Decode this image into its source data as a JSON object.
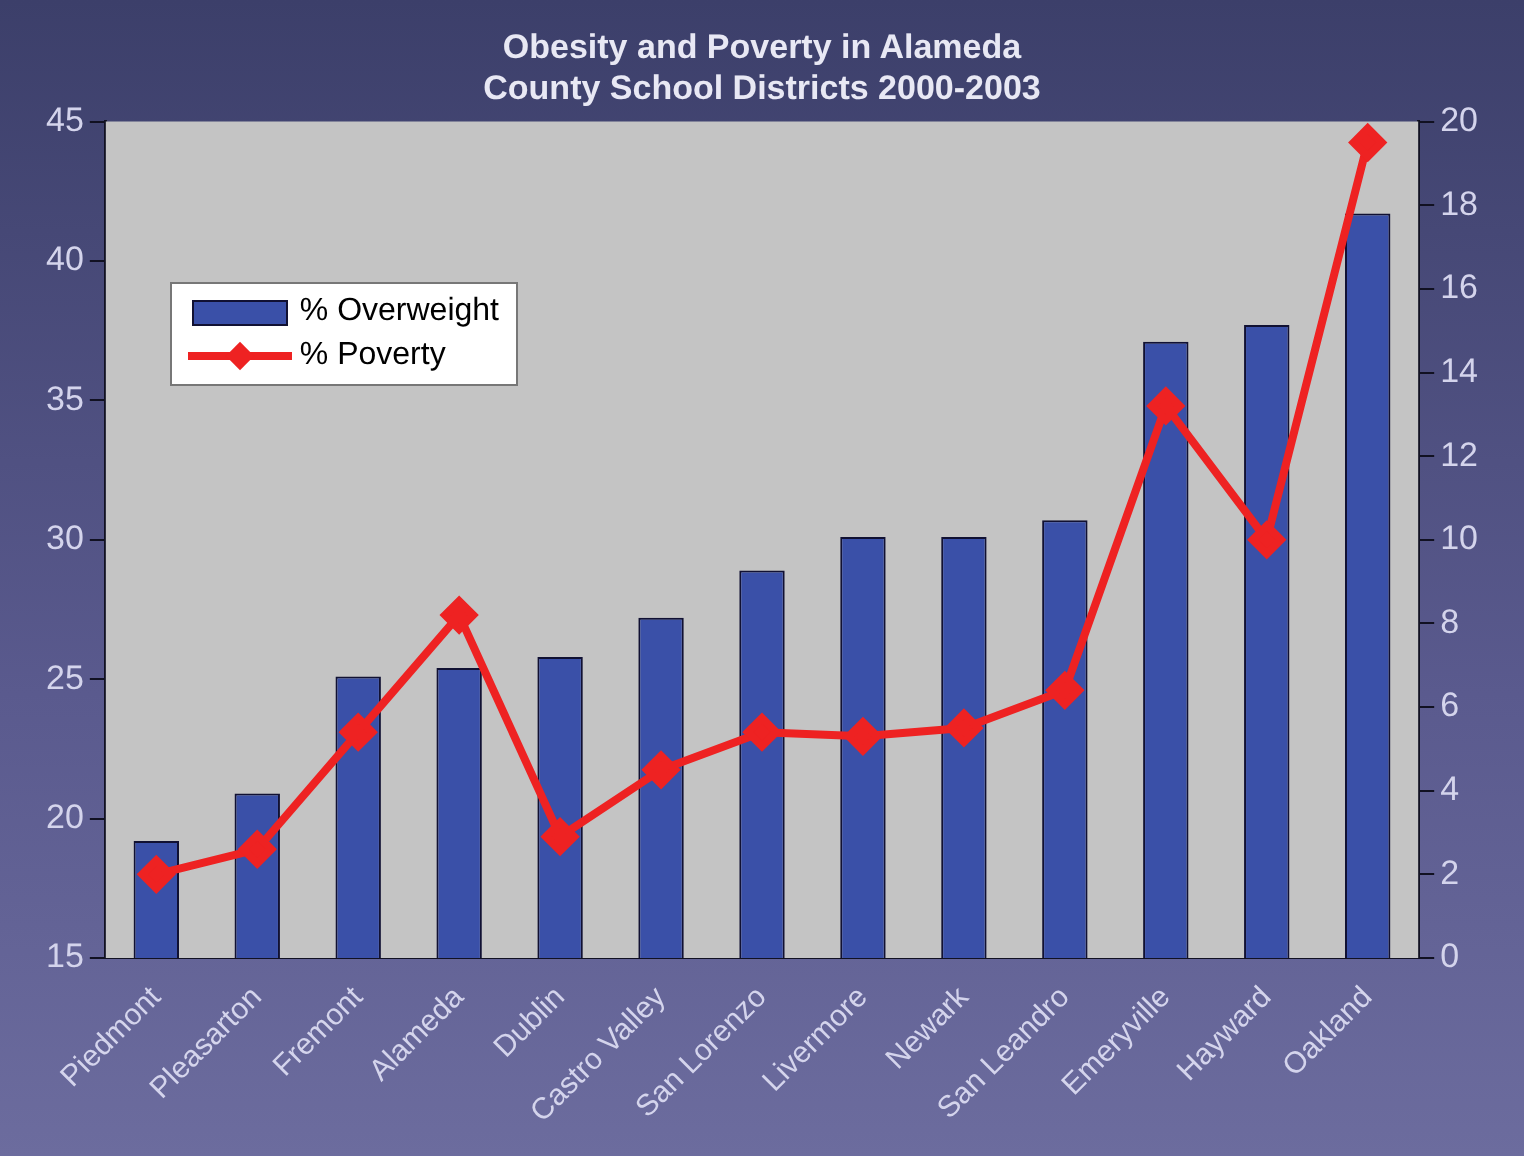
{
  "chart_data": {
    "type": "bar",
    "title": "Obesity and Poverty in Alameda\nCounty School Districts 2000-2003",
    "categories": [
      "Piedmont",
      "Pleasarton",
      "Fremont",
      "Alameda",
      "Dublin",
      "Castro Valley",
      "San Lorenzo",
      "Livermore",
      "Newark",
      "San Leandro",
      "Emeryville",
      "Hayward",
      "Oakland"
    ],
    "series": [
      {
        "name": "% Overweight",
        "type": "bar",
        "color": "#3a50a8",
        "values": [
          19.2,
          20.9,
          25.1,
          25.4,
          25.8,
          27.2,
          28.9,
          30.1,
          30.1,
          30.7,
          37.1,
          37.7,
          41.7
        ]
      },
      {
        "name": "% Poverty",
        "type": "line",
        "axis": "y2",
        "color": "#ee2222",
        "marker": "diamond",
        "values": [
          2.0,
          2.6,
          5.4,
          8.2,
          2.9,
          4.5,
          5.4,
          5.3,
          5.5,
          6.4,
          13.2,
          10.0,
          19.5
        ]
      }
    ],
    "ylim": [
      15,
      45
    ],
    "yticks": [
      15,
      20,
      25,
      30,
      35,
      40,
      45
    ],
    "y2lim": [
      0,
      20
    ],
    "y2ticks": [
      0,
      2,
      4,
      6,
      8,
      10,
      12,
      14,
      16,
      18,
      20
    ],
    "grid": false,
    "legend": "top left"
  }
}
